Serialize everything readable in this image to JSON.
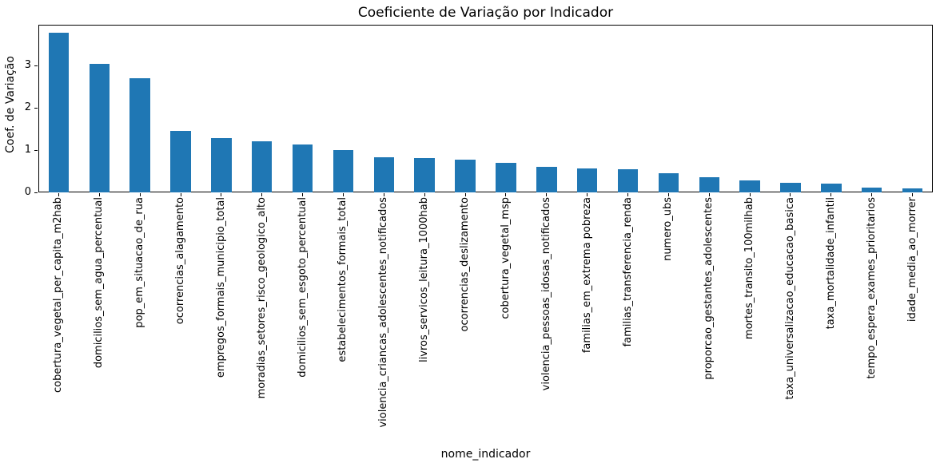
{
  "chart_data": {
    "type": "bar",
    "title": "Coeficiente de Variação por Indicador",
    "xlabel": "nome_indicador",
    "ylabel": "Coef. de Variação",
    "categories": [
      "cobertura_vegetal_per_capita_m2hab",
      "domicilios_sem_agua_percentual",
      "pop_em_situacao_de_rua",
      "ocorrencias_alagamento",
      "empregos_formais_municipio_total",
      "moradias_setores_risco_geologico_alto",
      "domicilios_sem_esgoto_percentual",
      "estabelecimentos_formais_total",
      "violencia_criancas_adolescentes_notificados",
      "livros_servicos_leitura_1000hab",
      "ocorrencias_deslizamento",
      "cobertura_vegetal_msp",
      "violencia_pessoas_idosas_notificados",
      "familias_em_extrema pobreza",
      "familias_transferencia_renda",
      "numero_ubs",
      "proporcao_gestantes_adolescentes",
      "mortes_transito_100milhab",
      "taxa_universalizacao_educacao_basica",
      "taxa_mortalidade_infantil",
      "tempo_espera_exames_prioritarios",
      "idade_media_ao_morrer"
    ],
    "values": [
      3.78,
      3.05,
      2.71,
      1.46,
      1.28,
      1.21,
      1.13,
      1.0,
      0.83,
      0.81,
      0.77,
      0.7,
      0.6,
      0.57,
      0.55,
      0.46,
      0.35,
      0.28,
      0.22,
      0.21,
      0.12,
      0.09
    ],
    "yticks": [
      0,
      1,
      2,
      3
    ],
    "ylim": [
      0,
      3.97
    ],
    "bar_color": "#1f77b4",
    "grid": false,
    "legend": false,
    "x_tick_rotation": 90
  }
}
